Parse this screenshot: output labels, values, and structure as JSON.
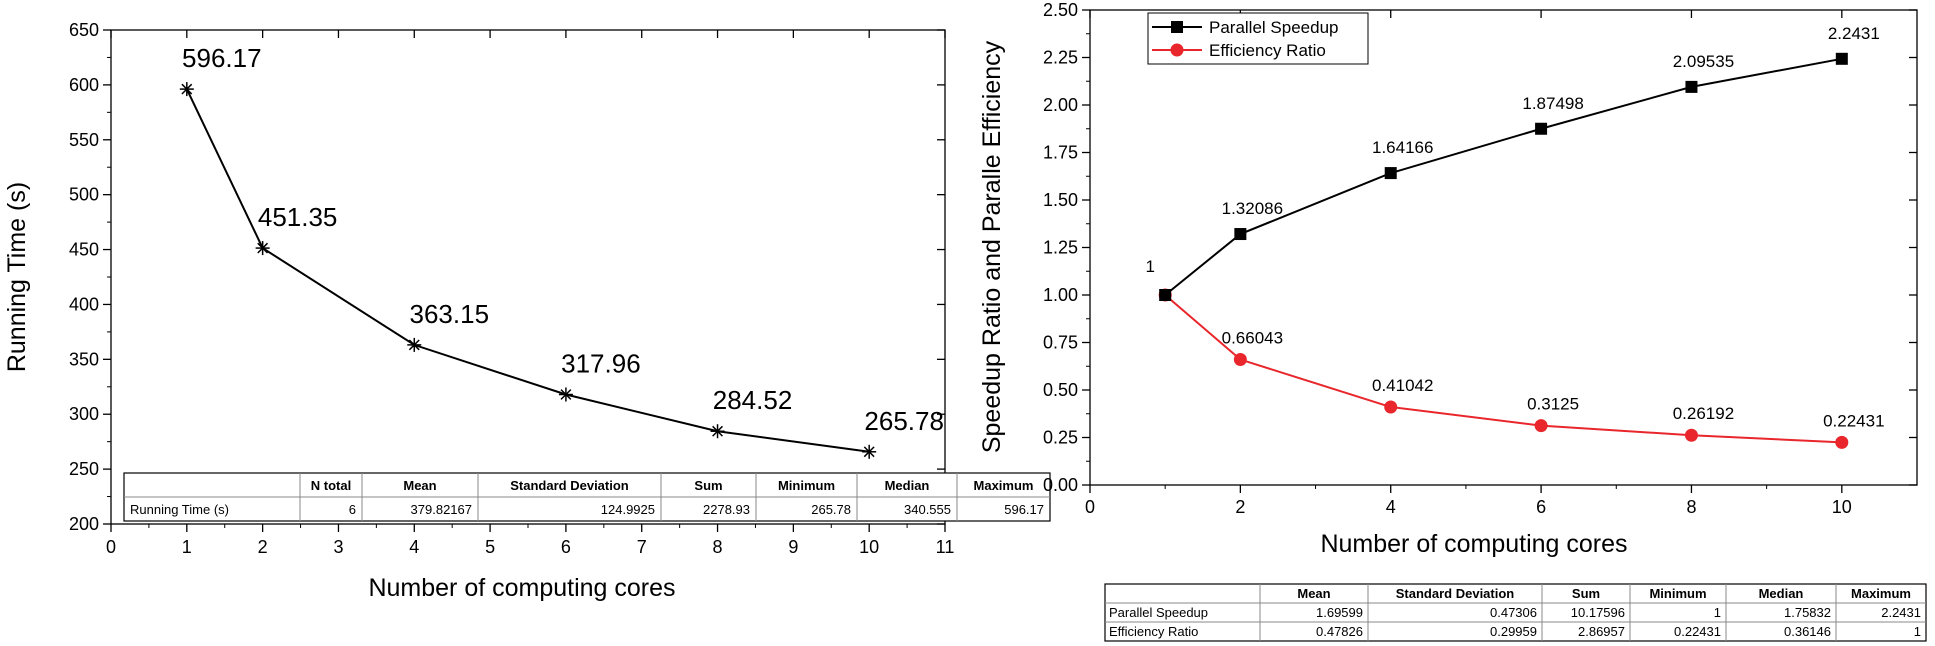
{
  "chart_data": [
    {
      "type": "line",
      "title": "",
      "xlabel": "Number of computing cores",
      "ylabel": "Running Time (s)",
      "xlim": [
        0,
        11
      ],
      "ylim": [
        200,
        650
      ],
      "x_ticks": [
        0,
        1,
        2,
        3,
        4,
        5,
        6,
        7,
        8,
        9,
        10,
        11
      ],
      "y_ticks": [
        200,
        250,
        300,
        350,
        400,
        450,
        500,
        550,
        600,
        650
      ],
      "grid": false,
      "marker": "asterisk",
      "series": [
        {
          "name": "Running Time (s)",
          "x": [
            1,
            2,
            4,
            6,
            8,
            10
          ],
          "y": [
            596.17,
            451.35,
            363.15,
            317.96,
            284.52,
            265.78
          ],
          "labels": [
            "596.17",
            "451.35",
            "363.15",
            "317.96",
            "284.52",
            "265.78"
          ]
        }
      ],
      "stats_table": {
        "headers": [
          "",
          "N total",
          "Mean",
          "Standard Deviation",
          "Sum",
          "Minimum",
          "Median",
          "Maximum"
        ],
        "rows": [
          [
            "Running Time (s)",
            "6",
            "379.82167",
            "124.9925",
            "2278.93",
            "265.78",
            "340.555",
            "596.17"
          ]
        ]
      }
    },
    {
      "type": "line",
      "title": "",
      "xlabel": "Number of computing cores",
      "ylabel": "Speedup Ratio and Paralle Efficiency",
      "xlim": [
        0,
        11
      ],
      "ylim": [
        0,
        2.5
      ],
      "x_ticks": [
        0,
        2,
        4,
        6,
        8,
        10
      ],
      "y_ticks": [
        "0.00",
        "0.25",
        "0.50",
        "0.75",
        "1.00",
        "1.25",
        "1.50",
        "1.75",
        "2.00",
        "2.25",
        "2.50"
      ],
      "grid": false,
      "legend": "top-left",
      "series": [
        {
          "name": "Parallel Speedup",
          "color": "#000000",
          "marker": "square",
          "x": [
            1,
            2,
            4,
            6,
            8,
            10
          ],
          "y": [
            1,
            1.32086,
            1.64166,
            1.87498,
            2.09535,
            2.2431
          ],
          "labels": [
            "1",
            "1.32086",
            "1.64166",
            "1.87498",
            "2.09535",
            "2.2431"
          ]
        },
        {
          "name": "Efficiency Ratio",
          "color": "#e8262b",
          "marker": "circle",
          "x": [
            1,
            2,
            4,
            6,
            8,
            10
          ],
          "y": [
            1,
            0.66043,
            0.41042,
            0.3125,
            0.26192,
            0.22431
          ],
          "labels": [
            "",
            "0.66043",
            "0.41042",
            "0.3125",
            "0.26192",
            "0.22431"
          ]
        }
      ],
      "stats_table": {
        "headers": [
          "",
          "Mean",
          "Standard Deviation",
          "Sum",
          "Minimum",
          "Median",
          "Maximum"
        ],
        "rows": [
          [
            "Parallel Speedup",
            "1.69599",
            "0.47306",
            "10.17596",
            "1",
            "1.75832",
            "2.2431"
          ],
          [
            "Efficiency Ratio",
            "0.47826",
            "0.29959",
            "2.86957",
            "0.22431",
            "0.36146",
            "1"
          ]
        ]
      }
    }
  ]
}
